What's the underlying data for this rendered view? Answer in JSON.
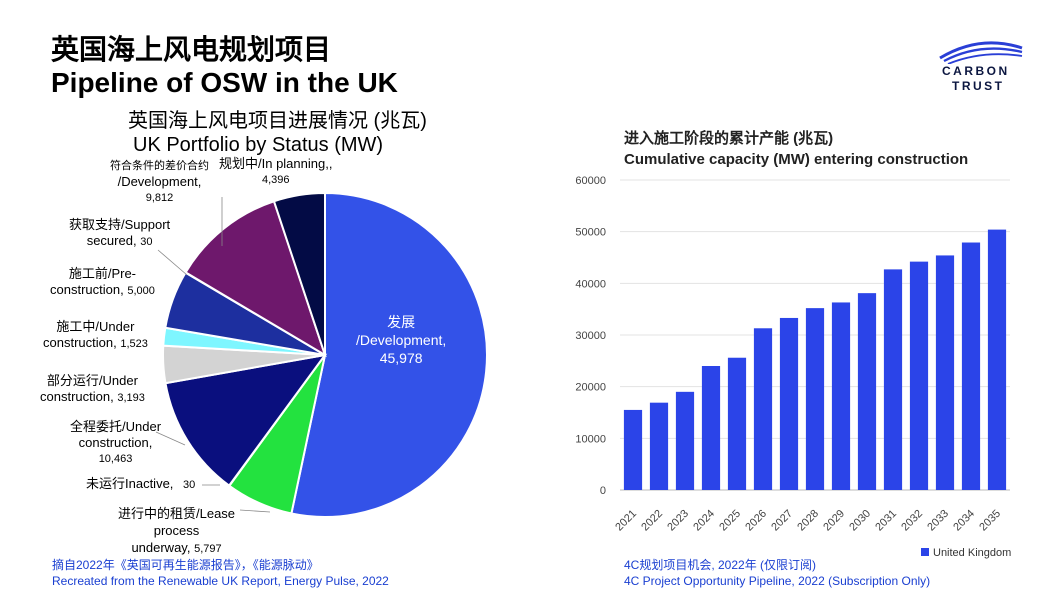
{
  "header": {
    "title_cn": "英国海上风电规划项目",
    "title_en": "Pipeline of OSW in the UK"
  },
  "logo": {
    "line1": "CARBON",
    "line2": "TRUST"
  },
  "chart_data": [
    {
      "type": "pie",
      "title": "英国海上风电项目进展情况 (兆瓦)",
      "subtitle": "UK Portfolio by Status (MW)",
      "slices": [
        {
          "label": "发展 /Development,",
          "value": 45978,
          "value_text": "45,978",
          "color": "#3352e8"
        },
        {
          "label": "进行中的租赁/Lease process underway,",
          "value": 5797,
          "value_text": "5,797",
          "color": "#23e23f"
        },
        {
          "label": "未运行Inactive,",
          "value": 30,
          "value_text": "30",
          "color": "#8b8b8b"
        },
        {
          "label": "全程委托/Under construction,",
          "value": 10463,
          "value_text": "10,463",
          "color": "#0a0f7e"
        },
        {
          "label": "部分运行/Under construction,",
          "value": 3193,
          "value_text": "3,193",
          "color": "#d3d3d3"
        },
        {
          "label": "施工中/Under construction,",
          "value": 1523,
          "value_text": "1,523",
          "color": "#7ef6ff"
        },
        {
          "label": "施工前/Pre-construction,",
          "value": 5000,
          "value_text": "5,000",
          "color": "#1d2f9f"
        },
        {
          "label": "获取支持/Support secured,",
          "value": 30,
          "value_text": "30",
          "color": "#cfcfcf"
        },
        {
          "label": "符合条件的差价合约 /Development,",
          "value": 9812,
          "value_text": "9,812",
          "color": "#6e186c"
        },
        {
          "label": "规划中/In planning,,",
          "value": 4396,
          "value_text": "4,396",
          "color": "#030b45"
        }
      ]
    },
    {
      "type": "bar",
      "title": "进入施工阶段的累计产能 (兆瓦)",
      "subtitle": "Cumulative capacity (MW) entering construction",
      "categories": [
        "2021",
        "2022",
        "2023",
        "2024",
        "2025",
        "2026",
        "2027",
        "2028",
        "2029",
        "2030",
        "2031",
        "2032",
        "2033",
        "2034",
        "2035"
      ],
      "series": [
        {
          "name": "United Kingdom",
          "values": [
            15500,
            16900,
            19000,
            24000,
            25600,
            31300,
            33300,
            35200,
            36300,
            38100,
            42700,
            44200,
            45400,
            47900,
            50400
          ],
          "color": "#2b44e8"
        }
      ],
      "yticks": [
        0,
        10000,
        20000,
        30000,
        40000,
        50000,
        60000
      ],
      "ylim": [
        0,
        60000
      ],
      "grid": true,
      "legend": "bottom-right"
    }
  ],
  "pie_labels": {
    "development": {
      "l1": "发展",
      "l2": "/Development,",
      "l3": "45,978"
    },
    "lease": {
      "l1": "进行中的租赁/Lease",
      "l2": "process",
      "l3": "underway,",
      "num": "5,797"
    },
    "inactive": {
      "text": "未运行Inactive,",
      "num": "30"
    },
    "full_commission": {
      "l1": "全程委托/Under",
      "l2": "construction,",
      "num": "10,463"
    },
    "partial": {
      "l1": "部分运行/Under",
      "l2": "construction,",
      "num": "3,193"
    },
    "under_construction": {
      "l1": "施工中/Under",
      "l2": "construction,",
      "num": "1,523"
    },
    "pre_construction": {
      "l1": "施工前/Pre-",
      "l2": "construction,",
      "num": "5,000"
    },
    "support": {
      "l1": "获取支持/Support",
      "l2": "secured,",
      "num": "30"
    },
    "cfd": {
      "l1": "符合条件的差价合约",
      "l2": "/Development,",
      "num": "9,812"
    },
    "planning": {
      "l1": "规划中/In planning,,",
      "num": "4,396"
    }
  },
  "sources": {
    "left_cn": "摘自2022年《英国可再生能源报告》，《能源脉动》",
    "left_en": "Recreated from the Renewable UK Report, Energy Pulse, 2022",
    "right_cn": "4C规划项目机会, 2022年 (仅限订阅)",
    "right_en": "4C Project Opportunity Pipeline, 2022 (Subscription Only)"
  }
}
